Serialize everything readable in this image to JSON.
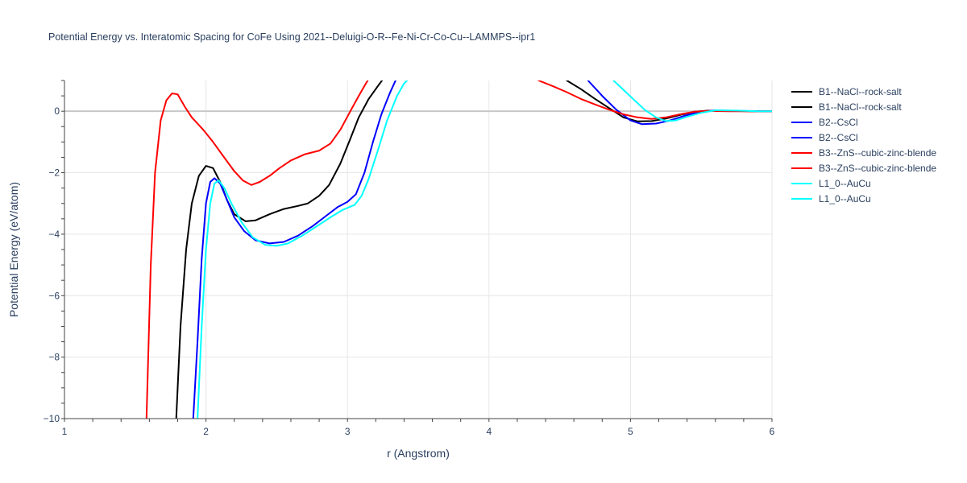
{
  "chart_data": {
    "type": "line",
    "title": "Potential Energy vs. Interatomic Spacing for CoFe Using 2021--Deluigi-O-R--Fe-Ni-Cr-Co-Cu--LAMMPS--ipr1",
    "xlabel": "r (Angstrom)",
    "ylabel": "Potential Energy (eV/atom)",
    "xlim": [
      1,
      6
    ],
    "ylim": [
      -10,
      1
    ],
    "xticks": [
      1,
      2,
      3,
      4,
      5,
      6
    ],
    "yticks": [
      0,
      -2,
      -4,
      -6,
      -8,
      -10
    ],
    "xtick_labels": [
      "1",
      "2",
      "3",
      "4",
      "5",
      "6"
    ],
    "ytick_labels": [
      "0",
      "−2",
      "−4",
      "−6",
      "−8",
      "−10"
    ],
    "grid": true,
    "legend_position": "right",
    "series": [
      {
        "name": "B1--NaCl--rock-salt",
        "color": "#000000",
        "points": [
          [
            1.79,
            -10
          ],
          [
            1.82,
            -7.0
          ],
          [
            1.86,
            -4.5
          ],
          [
            1.9,
            -3.0
          ],
          [
            1.95,
            -2.1
          ],
          [
            2.0,
            -1.78
          ],
          [
            2.05,
            -1.85
          ],
          [
            2.1,
            -2.3
          ],
          [
            2.15,
            -2.9
          ],
          [
            2.2,
            -3.35
          ],
          [
            2.28,
            -3.58
          ],
          [
            2.35,
            -3.55
          ],
          [
            2.45,
            -3.35
          ],
          [
            2.55,
            -3.18
          ],
          [
            2.65,
            -3.08
          ],
          [
            2.72,
            -3.0
          ],
          [
            2.8,
            -2.75
          ],
          [
            2.87,
            -2.4
          ],
          [
            2.95,
            -1.7
          ],
          [
            3.02,
            -0.9
          ],
          [
            3.08,
            -0.2
          ],
          [
            3.15,
            0.4
          ],
          [
            3.22,
            0.85
          ],
          [
            3.26,
            1.1
          ]
        ]
      },
      {
        "name": "B1--NaCl--rock-salt",
        "color": "#000000",
        "points": [
          [
            4.55,
            1.0
          ],
          [
            4.65,
            0.72
          ],
          [
            4.75,
            0.4
          ],
          [
            4.85,
            0.1
          ],
          [
            4.95,
            -0.2
          ],
          [
            5.05,
            -0.33
          ],
          [
            5.15,
            -0.32
          ],
          [
            5.25,
            -0.24
          ],
          [
            5.35,
            -0.12
          ],
          [
            5.45,
            -0.02
          ],
          [
            5.55,
            0.02
          ],
          [
            5.7,
            0.01
          ],
          [
            5.85,
            0.0
          ],
          [
            6.0,
            0.0
          ]
        ]
      },
      {
        "name": "B2--CsCl",
        "color": "#0000ff",
        "points": [
          [
            1.91,
            -10
          ],
          [
            1.94,
            -7.5
          ],
          [
            1.97,
            -4.8
          ],
          [
            2.0,
            -3.0
          ],
          [
            2.03,
            -2.3
          ],
          [
            2.06,
            -2.18
          ],
          [
            2.1,
            -2.35
          ],
          [
            2.15,
            -2.9
          ],
          [
            2.2,
            -3.45
          ],
          [
            2.27,
            -3.9
          ],
          [
            2.35,
            -4.2
          ],
          [
            2.45,
            -4.3
          ],
          [
            2.55,
            -4.25
          ],
          [
            2.65,
            -4.05
          ],
          [
            2.75,
            -3.75
          ],
          [
            2.85,
            -3.4
          ],
          [
            2.93,
            -3.12
          ],
          [
            3.0,
            -2.95
          ],
          [
            3.06,
            -2.7
          ],
          [
            3.12,
            -2.0
          ],
          [
            3.18,
            -1.0
          ],
          [
            3.24,
            -0.1
          ],
          [
            3.3,
            0.6
          ],
          [
            3.34,
            1.0
          ]
        ]
      },
      {
        "name": "B2--CsCl",
        "color": "#0000ff",
        "points": [
          [
            4.7,
            1.0
          ],
          [
            4.8,
            0.5
          ],
          [
            4.9,
            0.05
          ],
          [
            5.0,
            -0.3
          ],
          [
            5.08,
            -0.42
          ],
          [
            5.18,
            -0.4
          ],
          [
            5.28,
            -0.3
          ],
          [
            5.38,
            -0.15
          ],
          [
            5.5,
            -0.01
          ],
          [
            5.6,
            0.03
          ],
          [
            5.75,
            0.01
          ],
          [
            6.0,
            0.0
          ]
        ]
      },
      {
        "name": "B3--ZnS--cubic-zinc-blende",
        "color": "#ff0000",
        "points": [
          [
            1.58,
            -10
          ],
          [
            1.61,
            -5.0
          ],
          [
            1.64,
            -2.0
          ],
          [
            1.68,
            -0.3
          ],
          [
            1.72,
            0.35
          ],
          [
            1.76,
            0.58
          ],
          [
            1.8,
            0.55
          ],
          [
            1.85,
            0.15
          ],
          [
            1.9,
            -0.2
          ],
          [
            1.98,
            -0.6
          ],
          [
            2.05,
            -1.0
          ],
          [
            2.12,
            -1.45
          ],
          [
            2.2,
            -1.95
          ],
          [
            2.26,
            -2.25
          ],
          [
            2.32,
            -2.4
          ],
          [
            2.38,
            -2.3
          ],
          [
            2.45,
            -2.1
          ],
          [
            2.52,
            -1.85
          ],
          [
            2.6,
            -1.6
          ],
          [
            2.7,
            -1.4
          ],
          [
            2.8,
            -1.28
          ],
          [
            2.88,
            -1.05
          ],
          [
            2.95,
            -0.6
          ],
          [
            3.02,
            0.0
          ],
          [
            3.08,
            0.5
          ],
          [
            3.13,
            0.9
          ],
          [
            3.15,
            1.05
          ]
        ]
      },
      {
        "name": "B3--ZnS--cubic-zinc-blende",
        "color": "#ff0000",
        "points": [
          [
            4.35,
            1.0
          ],
          [
            4.45,
            0.82
          ],
          [
            4.55,
            0.62
          ],
          [
            4.65,
            0.4
          ],
          [
            4.75,
            0.22
          ],
          [
            4.85,
            0.05
          ],
          [
            4.95,
            -0.1
          ],
          [
            5.05,
            -0.2
          ],
          [
            5.15,
            -0.25
          ],
          [
            5.25,
            -0.2
          ],
          [
            5.35,
            -0.1
          ],
          [
            5.45,
            -0.02
          ],
          [
            5.55,
            0.01
          ],
          [
            5.7,
            0.0
          ],
          [
            6.0,
            0.0
          ]
        ]
      },
      {
        "name": "L1_0--AuCu",
        "color": "#00ffff",
        "points": [
          [
            1.94,
            -10
          ],
          [
            1.97,
            -7.0
          ],
          [
            2.0,
            -4.5
          ],
          [
            2.03,
            -3.0
          ],
          [
            2.06,
            -2.35
          ],
          [
            2.09,
            -2.25
          ],
          [
            2.13,
            -2.5
          ],
          [
            2.18,
            -3.0
          ],
          [
            2.25,
            -3.6
          ],
          [
            2.33,
            -4.1
          ],
          [
            2.42,
            -4.35
          ],
          [
            2.5,
            -4.38
          ],
          [
            2.58,
            -4.3
          ],
          [
            2.68,
            -4.05
          ],
          [
            2.78,
            -3.75
          ],
          [
            2.88,
            -3.45
          ],
          [
            2.97,
            -3.2
          ],
          [
            3.05,
            -3.05
          ],
          [
            3.1,
            -2.75
          ],
          [
            3.15,
            -2.2
          ],
          [
            3.22,
            -1.2
          ],
          [
            3.28,
            -0.3
          ],
          [
            3.35,
            0.5
          ],
          [
            3.4,
            0.9
          ],
          [
            3.42,
            1.0
          ]
        ]
      },
      {
        "name": "L1_0--AuCu",
        "color": "#00ffff",
        "points": [
          [
            4.88,
            1.0
          ],
          [
            4.95,
            0.7
          ],
          [
            5.03,
            0.35
          ],
          [
            5.1,
            0.05
          ],
          [
            5.18,
            -0.2
          ],
          [
            5.25,
            -0.32
          ],
          [
            5.32,
            -0.3
          ],
          [
            5.4,
            -0.18
          ],
          [
            5.5,
            -0.05
          ],
          [
            5.6,
            0.03
          ],
          [
            5.75,
            0.02
          ],
          [
            5.9,
            0.0
          ],
          [
            6.0,
            0.0
          ]
        ]
      }
    ]
  }
}
